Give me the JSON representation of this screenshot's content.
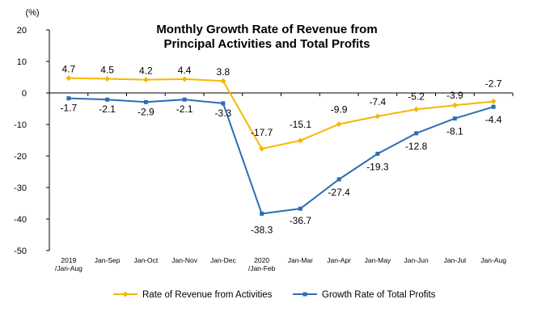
{
  "chart_data": {
    "type": "line",
    "title_lines": [
      "Monthly Growth Rate of Revenue from",
      "Principal Activities  and Total Profits"
    ],
    "unit_label": "(%)",
    "ylim": [
      -50,
      20
    ],
    "yticks": [
      20,
      10,
      0,
      -10,
      -20,
      -30,
      -40,
      -50
    ],
    "grid": false,
    "legend_position": "bottom",
    "categories": [
      [
        "2019",
        "/Jan-Aug"
      ],
      [
        "Jan-Sep"
      ],
      [
        "Jan-Oct"
      ],
      [
        "Jan-Nov"
      ],
      [
        "Jan-Dec"
      ],
      [
        "2020",
        "/Jan-Feb"
      ],
      [
        "Jan-Mar"
      ],
      [
        "Jan-Apr"
      ],
      [
        "Jan-May"
      ],
      [
        "Jan-Jun"
      ],
      [
        "Jan-Jul"
      ],
      [
        "Jan-Aug"
      ]
    ],
    "series": [
      {
        "name": "Rate of Revenue from Activities",
        "color": "#f5b800",
        "marker": "diamond",
        "values": [
          4.7,
          4.5,
          4.2,
          4.4,
          3.8,
          -17.7,
          -15.1,
          -9.9,
          -7.4,
          -5.2,
          -3.9,
          -2.7
        ],
        "labels": [
          "4.7",
          "4.5",
          "4.2",
          "4.4",
          "3.8",
          "-17.7",
          "-15.1",
          "-9.9",
          "-7.4",
          "-5.2",
          "-3.9",
          "-2.7"
        ]
      },
      {
        "name": "Growth Rate of Total Profits",
        "color": "#2e6db4",
        "marker": "square",
        "values": [
          -1.7,
          -2.1,
          -2.9,
          -2.1,
          -3.3,
          -38.3,
          -36.7,
          -27.4,
          -19.3,
          -12.8,
          -8.1,
          -4.4
        ],
        "labels": [
          "-1.7",
          "-2.1",
          "-2.9",
          "-2.1",
          "-3.3",
          "-38.3",
          "-36.7",
          "-27.4",
          "-19.3",
          "-12.8",
          "-8.1",
          "-4.4"
        ]
      }
    ]
  }
}
